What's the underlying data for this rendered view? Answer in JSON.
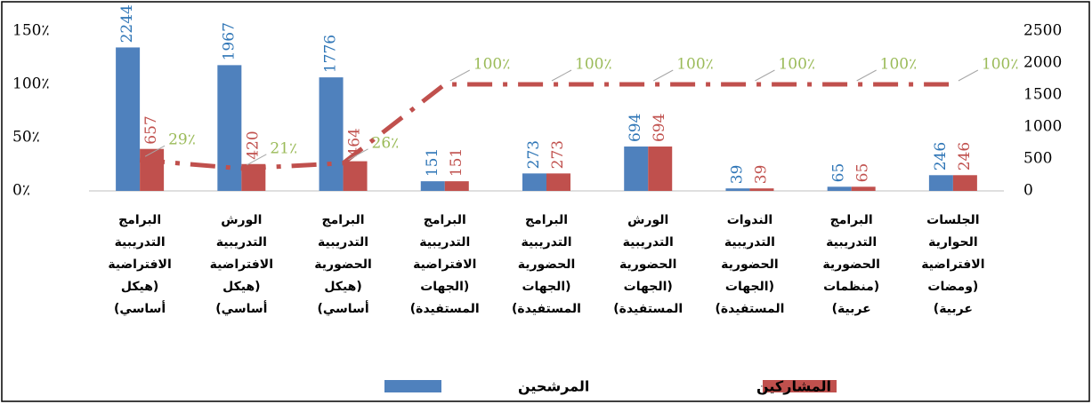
{
  "chart_data": {
    "type": "bar-line",
    "categories": [
      "البرامج التدريبية الافتراضية (هيكل أساسي)",
      "الورش التدريبية الافتراضية (هيكل أساسي)",
      "البرامج التدريبية الحضورية (هيكل أساسي)",
      "البرامج التدريبية الافتراضية (الجهات المستفيدة)",
      "البرامج التدريبية الحضورية (الجهات المستفيدة)",
      "الورش التدريبية الحضورية (الجهات المستفيدة)",
      "الندوات التدريبية الحضورية (الجهات المستفيدة)",
      "البرامج التدريبية الحضورية (منظمات عربية)",
      "الجلسات الحوارية الافتراضية (ومضات عربية)"
    ],
    "series": [
      {
        "name": "المرشحين",
        "color": "#4f81bd",
        "label_color": "#2e75b6",
        "type": "bar",
        "axis": "y2",
        "values": [
          2244,
          1967,
          1776,
          151,
          273,
          694,
          39,
          65,
          246
        ]
      },
      {
        "name": "المشاركين",
        "color": "#c0504d",
        "label_color": "#c0504d",
        "type": "bar",
        "axis": "y2",
        "values": [
          657,
          420,
          464,
          151,
          273,
          694,
          39,
          65,
          246
        ]
      },
      {
        "color": "#c0504d",
        "label_color": "#9bbb59",
        "type": "line",
        "axis": "y",
        "values": [
          29,
          21,
          26,
          100,
          100,
          100,
          100,
          100,
          100
        ],
        "value_labels": [
          "29٪",
          "21٪",
          "26٪",
          "100٪",
          "100٪",
          "100٪",
          "100٪",
          "100٪",
          "100٪"
        ]
      }
    ],
    "ylim": [
      0,
      150
    ],
    "yticks": [
      {
        "value": 0,
        "label": "0٪"
      },
      {
        "value": 50,
        "label": "50٪"
      },
      {
        "value": 100,
        "label": "100٪"
      },
      {
        "value": 150,
        "label": "150٪"
      }
    ],
    "y2lim": [
      0,
      2500
    ],
    "y2ticks": [
      0,
      500,
      1000,
      1500,
      2000,
      2500
    ],
    "grid": false
  }
}
